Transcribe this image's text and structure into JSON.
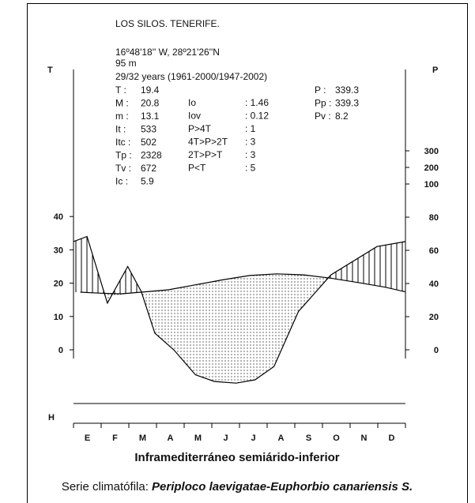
{
  "station": {
    "name": "LOS SILOS. TENERIFE.",
    "coords": "16º48'18'' W, 28º21'26''N",
    "altitude": "95 m",
    "years": "29/32 years (1961-2000/1947-2002)"
  },
  "params_left": [
    {
      "label": "T   :",
      "value": "19.4"
    },
    {
      "label": "M   :",
      "value": "20.8"
    },
    {
      "label": "m   :",
      "value": "13.1"
    },
    {
      "label": "It  :",
      "value": "533"
    },
    {
      "label": "Itc :",
      "value": "502"
    },
    {
      "label": "Tp :",
      "value": "2328"
    },
    {
      "label": "Tv :",
      "value": "672"
    },
    {
      "label": "Ic  :",
      "value": "5.9"
    }
  ],
  "params_mid": [
    {
      "label": "Io",
      "value": ": 1.46"
    },
    {
      "label": "Iov",
      "value": ": 0.12"
    },
    {
      "label": "P>4T",
      "value": ": 1"
    },
    {
      "label": "4T>P>2T",
      "value": ": 3"
    },
    {
      "label": "2T>P>T",
      "value": ": 3"
    },
    {
      "label": "P<T",
      "value": ": 5"
    }
  ],
  "params_right": [
    {
      "label": "P  :",
      "value": "339.3"
    },
    {
      "label": "Pp :",
      "value": "339.3"
    },
    {
      "label": "Pv :",
      "value": "8.2"
    }
  ],
  "bioclimate": "Inframediterráneo semiárido-inferior",
  "caption": {
    "prefix": "Serie climatófila: ",
    "series": "Periploco laevigatae-Euphorbio canariensis S."
  },
  "colors": {
    "line": "#000000",
    "background": "#ffffff"
  },
  "chart_data": {
    "type": "line",
    "categories": [
      "E",
      "F",
      "M",
      "A",
      "M",
      "J",
      "J",
      "A",
      "S",
      "O",
      "N",
      "D"
    ],
    "x_positions": [
      0.25,
      1.0,
      1.75,
      2.5,
      3.5,
      4.5,
      5.5,
      6.5,
      7.5,
      8.5,
      9.5,
      10.5,
      11.5,
      12.25
    ],
    "temperature_values": [
      17.3,
      17.0,
      16.8,
      17.3,
      18.0,
      19.5,
      21.0,
      22.3,
      22.8,
      22.5,
      21.5,
      20.2,
      18.8,
      17.4
    ],
    "precipitation_values": [
      65,
      68,
      28,
      50,
      35,
      10,
      0,
      -15,
      -19,
      -20,
      -18,
      -10,
      23,
      45,
      62,
      65
    ],
    "precipitation_x": [
      0.0,
      0.5,
      1.25,
      2.0,
      2.5,
      3.0,
      3.7,
      4.5,
      5.2,
      6.0,
      6.7,
      7.4,
      8.3,
      9.5,
      11.2,
      12.25
    ],
    "left_axis": {
      "label": "T",
      "ticks": [
        0,
        10,
        20,
        30,
        40
      ],
      "ylim": [
        -5,
        42
      ]
    },
    "right_axis": {
      "label": "P",
      "ticks": [
        0,
        20,
        40,
        60,
        80,
        100,
        200,
        300
      ]
    },
    "bottom_label": "H",
    "grid": false
  }
}
